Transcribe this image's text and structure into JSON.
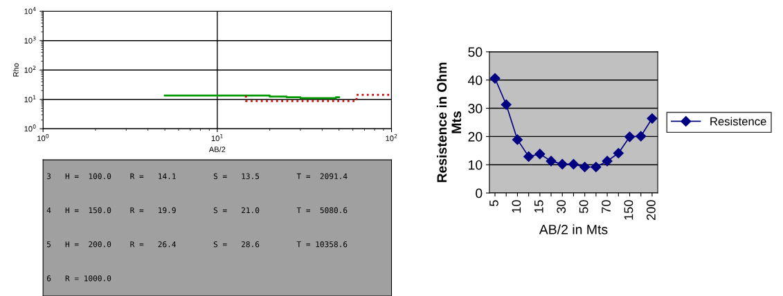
{
  "chart_data": [
    {
      "type": "step",
      "ylabel": "Rho",
      "xlabel": "AB/2",
      "log": "xy",
      "xlim": [
        1,
        100
      ],
      "xticks": [
        {
          "value": 1,
          "label": "10$^{0}$"
        },
        {
          "value": 10,
          "label": "10$^{1}$"
        },
        {
          "value": 100,
          "label": "10$^{2}$"
        }
      ],
      "ylim": [
        1,
        10000
      ],
      "yticks": [
        {
          "value": 1,
          "label": "10$^{0}$"
        },
        {
          "value": 10,
          "label": "10$^{1}$"
        },
        {
          "value": 100,
          "label": "10$^{2}$"
        },
        {
          "value": 1000,
          "label": "10$^{3}$"
        },
        {
          "value": 10000,
          "label": "10$^{4}$"
        }
      ],
      "grid": true,
      "series": [
        {
          "color": "#009900",
          "line_style": "solid",
          "x": [
            5,
            20,
            25,
            30,
            48,
            50
          ],
          "values": [
            13.5,
            12.4,
            11.8,
            11.1,
            11.8,
            11.8
          ]
        },
        {
          "color": "#cc0000",
          "line_style": "dotted",
          "x": [
            14.6,
            14.6,
            63,
            100
          ],
          "values": [
            13.5,
            8.8,
            14.2,
            14.2
          ]
        }
      ]
    },
    {
      "type": "other",
      "annotations": [
        "3   H =  100.0    R =   14.1        S =   13.5        T =  2091.4",
        "4   H =  150.0    R =   19.9        S =   21.0        T =  5080.6",
        "5   H =  200.0    R =   26.4        S =   28.6        T = 10358.6",
        "6   R = 1000.0"
      ]
    },
    {
      "type": "line",
      "xlabel": "AB/2 in Mts",
      "ylabel": "Resistence in Ohm\nMts",
      "categories": [
        "5",
        null,
        "10",
        null,
        "15",
        null,
        "30",
        null,
        "50",
        null,
        "70",
        null,
        "150",
        null,
        "200"
      ],
      "ylim": [
        0,
        50
      ],
      "yticks": [
        0,
        10,
        20,
        30,
        40,
        50
      ],
      "grid": "y",
      "legend": "right",
      "marker": "diamond",
      "series": [
        {
          "name": "Resistence",
          "color": "#000080",
          "values": [
            40.6,
            31.3,
            18.9,
            12.9,
            13.8,
            11.3,
            10.2,
            10.2,
            9.2,
            9.2,
            11.3,
            14.1,
            19.9,
            20.1,
            26.4
          ]
        }
      ]
    }
  ]
}
